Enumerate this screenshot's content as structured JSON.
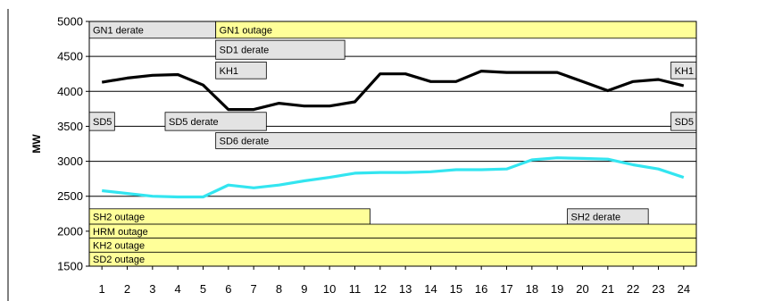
{
  "chart_data": {
    "type": "line",
    "title": "",
    "xlabel": "",
    "ylabel": "MW",
    "x": [
      1,
      2,
      3,
      4,
      5,
      6,
      7,
      8,
      9,
      10,
      11,
      12,
      13,
      14,
      15,
      16,
      17,
      18,
      19,
      20,
      21,
      22,
      23,
      24
    ],
    "xlim": [
      0.5,
      24.5
    ],
    "ylim": [
      1500,
      5000
    ],
    "yticks": [
      1500,
      2000,
      2500,
      3000,
      3500,
      4000,
      4500,
      5000
    ],
    "grid": true,
    "series": [
      {
        "color": "#000000",
        "values": [
          4130,
          4190,
          4230,
          4240,
          4090,
          3740,
          3740,
          3830,
          3790,
          3790,
          3850,
          4250,
          4250,
          4140,
          4140,
          4290,
          4270,
          4270,
          4270,
          4140,
          4010,
          4140,
          4170,
          4080
        ]
      },
      {
        "color": "#33e5f0",
        "values": [
          2580,
          2540,
          2500,
          2490,
          2490,
          2660,
          2620,
          2660,
          2720,
          2770,
          2830,
          2840,
          2840,
          2850,
          2880,
          2880,
          2890,
          3020,
          3050,
          3040,
          3030,
          2950,
          2890,
          2770
        ]
      }
    ],
    "events": [
      {
        "label": "GN1 derate",
        "start": 0.5,
        "end": 5.5,
        "y_top": 5000,
        "y_bottom": 4760,
        "color": "#e3e3e3"
      },
      {
        "label": "GN1 outage",
        "start": 5.5,
        "end": 24.5,
        "y_top": 5000,
        "y_bottom": 4760,
        "color": "#ffff99"
      },
      {
        "label": "SD1 derate",
        "start": 5.5,
        "end": 10.6,
        "y_top": 4730,
        "y_bottom": 4460,
        "color": "#e3e3e3"
      },
      {
        "label": "KH1",
        "start": 5.5,
        "end": 7.5,
        "y_top": 4420,
        "y_bottom": 4180,
        "color": "#e3e3e3"
      },
      {
        "label": "KH1",
        "start": 23.5,
        "end": 24.5,
        "y_top": 4420,
        "y_bottom": 4180,
        "color": "#e3e3e3"
      },
      {
        "label": "SD5",
        "start": 0.5,
        "end": 1.5,
        "y_top": 3700,
        "y_bottom": 3440,
        "color": "#e3e3e3"
      },
      {
        "label": "SD5 derate",
        "start": 3.5,
        "end": 7.5,
        "y_top": 3700,
        "y_bottom": 3440,
        "color": "#e3e3e3"
      },
      {
        "label": "SD5",
        "start": 23.5,
        "end": 24.5,
        "y_top": 3700,
        "y_bottom": 3440,
        "color": "#e3e3e3"
      },
      {
        "label": "SD6 derate",
        "start": 5.5,
        "end": 24.5,
        "y_top": 3410,
        "y_bottom": 3180,
        "color": "#e3e3e3"
      },
      {
        "label": "SH2 outage",
        "start": 0.5,
        "end": 11.6,
        "y_top": 2320,
        "y_bottom": 2100,
        "color": "#ffff99"
      },
      {
        "label": "SH2 derate",
        "start": 19.4,
        "end": 22.6,
        "y_top": 2320,
        "y_bottom": 2100,
        "color": "#e3e3e3"
      },
      {
        "label": "HRM outage",
        "start": 0.5,
        "end": 24.5,
        "y_top": 2100,
        "y_bottom": 1900,
        "color": "#ffff99"
      },
      {
        "label": "KH2 outage",
        "start": 0.5,
        "end": 24.5,
        "y_top": 1900,
        "y_bottom": 1700,
        "color": "#ffff99"
      },
      {
        "label": "SD2 outage",
        "start": 0.5,
        "end": 24.5,
        "y_top": 1700,
        "y_bottom": 1500,
        "color": "#ffff99"
      }
    ]
  }
}
